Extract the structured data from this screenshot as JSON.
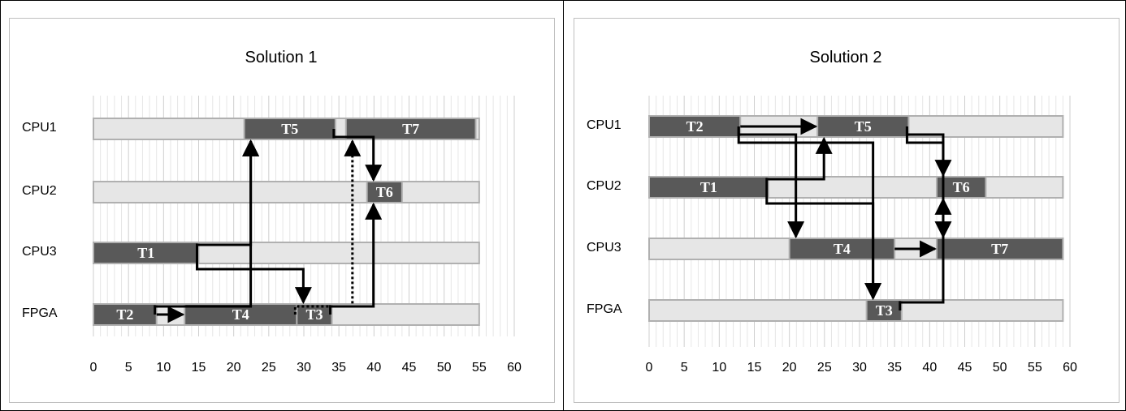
{
  "chart_data": [
    {
      "type": "gantt",
      "title": "Solution 1",
      "resources": [
        "CPU1",
        "CPU2",
        "CPU3",
        "FPGA"
      ],
      "xlim": [
        0,
        60
      ],
      "xticks": [
        "0",
        "5",
        "10",
        "15",
        "20",
        "25",
        "30",
        "35",
        "40",
        "45",
        "50",
        "55",
        "60"
      ],
      "grid": true,
      "resource_extent": 55,
      "tasks": [
        {
          "name": "T5",
          "resource": "CPU1",
          "start": 21.5,
          "end": 34.5
        },
        {
          "name": "T7",
          "resource": "CPU1",
          "start": 36,
          "end": 54.5
        },
        {
          "name": "T6",
          "resource": "CPU2",
          "start": 39,
          "end": 44
        },
        {
          "name": "T1",
          "resource": "CPU3",
          "start": 0,
          "end": 15
        },
        {
          "name": "T2",
          "resource": "FPGA",
          "start": 0,
          "end": 9
        },
        {
          "name": "T4",
          "resource": "FPGA",
          "start": 13,
          "end": 29
        },
        {
          "name": "T3",
          "resource": "FPGA",
          "start": 29,
          "end": 34
        }
      ],
      "dependencies": [
        {
          "from": "T2",
          "to": "T5",
          "style": "solid"
        },
        {
          "from": "T2",
          "to": "T4",
          "style": "solid"
        },
        {
          "from": "T1",
          "to": "T5",
          "style": "solid"
        },
        {
          "from": "T1",
          "to": "T3",
          "style": "solid"
        },
        {
          "from": "T5",
          "to": "T6",
          "style": "solid"
        },
        {
          "from": "T3",
          "to": "T6",
          "style": "solid"
        },
        {
          "from": "T4",
          "to": "T7",
          "style": "dotted"
        }
      ]
    },
    {
      "type": "gantt",
      "title": "Solution 2",
      "resources": [
        "CPU1",
        "CPU2",
        "CPU3",
        "FPGA"
      ],
      "xlim": [
        0,
        60
      ],
      "xticks": [
        "0",
        "5",
        "10",
        "15",
        "20",
        "25",
        "30",
        "35",
        "40",
        "45",
        "50",
        "55",
        "60"
      ],
      "grid": true,
      "resource_extent": 59,
      "tasks": [
        {
          "name": "T2",
          "resource": "CPU1",
          "start": 0,
          "end": 13
        },
        {
          "name": "T5",
          "resource": "CPU1",
          "start": 24,
          "end": 37
        },
        {
          "name": "T1",
          "resource": "CPU2",
          "start": 0,
          "end": 17
        },
        {
          "name": "T6",
          "resource": "CPU2",
          "start": 41,
          "end": 48
        },
        {
          "name": "T4",
          "resource": "CPU3",
          "start": 20,
          "end": 35
        },
        {
          "name": "T7",
          "resource": "CPU3",
          "start": 41,
          "end": 59
        },
        {
          "name": "T3",
          "resource": "FPGA",
          "start": 31,
          "end": 36
        }
      ],
      "dependencies": [
        {
          "from": "T2",
          "to": "T5",
          "style": "solid"
        },
        {
          "from": "T2",
          "to": "T4",
          "style": "solid"
        },
        {
          "from": "T2",
          "to": "T3",
          "style": "solid"
        },
        {
          "from": "T1",
          "to": "T5",
          "style": "solid"
        },
        {
          "from": "T1",
          "to": "T3",
          "style": "solid"
        },
        {
          "from": "T5",
          "to": "T6",
          "style": "solid"
        },
        {
          "from": "T5",
          "to": "T7",
          "style": "solid"
        },
        {
          "from": "T4",
          "to": "T7",
          "style": "solid"
        },
        {
          "from": "T3",
          "to": "T6",
          "style": "solid"
        }
      ]
    }
  ]
}
